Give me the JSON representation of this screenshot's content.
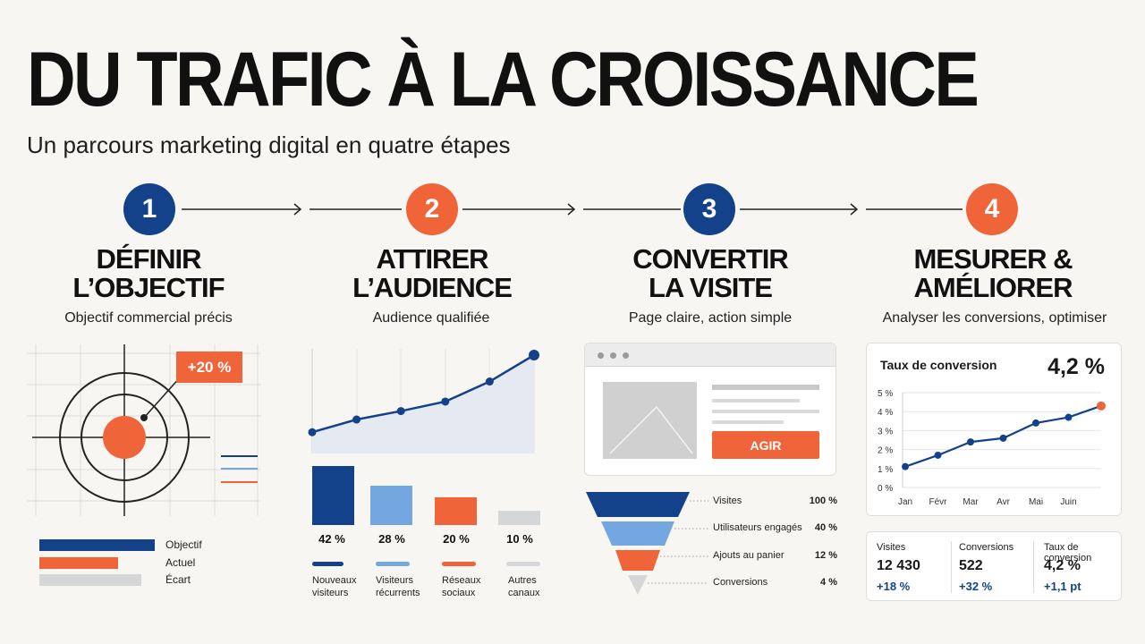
{
  "header": {
    "title": "DU TRAFIC À LA CROISSANCE",
    "subtitle": "Un parcours marketing digital en quatre étapes"
  },
  "steps": [
    {
      "number": "1",
      "title_line1": "DÉFINIR",
      "title_line2": "L’OBJECTIF",
      "subtitle": "Objectif commercial précis",
      "color": "#14428a"
    },
    {
      "number": "2",
      "title_line1": "ATTIRER",
      "title_line2": "L’AUDIENCE",
      "subtitle": "Audience qualifiée",
      "color": "#f0643a"
    },
    {
      "number": "3",
      "title_line1": "CONVERTIR",
      "title_line2": "LA VISITE",
      "subtitle": "Page claire, action simple",
      "color": "#14428a"
    },
    {
      "number": "4",
      "title_line1": "MESURER &",
      "title_line2": "AMÉLIORER",
      "subtitle": "Analyser les conversions, optimiser",
      "color": "#f0643a"
    }
  ],
  "objective": {
    "badge": "+20 %",
    "legend": [
      "Objectif",
      "Actuel",
      "Écart"
    ],
    "bar_fractions": [
      1.0,
      0.68,
      0.88
    ]
  },
  "audience": {
    "trend_values": [
      1,
      2.2,
      3.0,
      3.9,
      5.8,
      8.3
    ],
    "bars": [
      {
        "pct": "42 %",
        "value": 42,
        "label_line1": "Nouveaux",
        "label_line2": "visiteurs",
        "color": "#14428a"
      },
      {
        "pct": "28 %",
        "value": 28,
        "label_line1": "Visiteurs",
        "label_line2": "récurrents",
        "color": "#74a6df"
      },
      {
        "pct": "20 %",
        "value": 20,
        "label_line1": "Réseaux",
        "label_line2": "sociaux",
        "color": "#f0643a"
      },
      {
        "pct": "10 %",
        "value": 10,
        "label_line1": "Autres",
        "label_line2": "canaux",
        "color": "#d4d6d8"
      }
    ]
  },
  "conversion": {
    "cta_label": "AGIR",
    "funnel": [
      {
        "label": "Visites",
        "pct": "100 %",
        "color": "#14428a"
      },
      {
        "label": "Utilisateurs engagés",
        "pct": "40 %",
        "color": "#74a6df"
      },
      {
        "label": "Ajouts au panier",
        "pct": "12 %",
        "color": "#f0643a"
      },
      {
        "label": "Conversions",
        "pct": "4 %",
        "color": "#d4d6d8"
      }
    ]
  },
  "chart_data": {
    "type": "line",
    "title": "Taux de conversion",
    "headline_value": "4,2 %",
    "x": [
      "Jan",
      "Févr",
      "Mar",
      "Avr",
      "Mai",
      "Juin",
      ""
    ],
    "y_ticks": [
      "0 %",
      "1 %",
      "2 %",
      "3 %",
      "4 %",
      "5 %"
    ],
    "ylim": [
      0,
      5
    ],
    "values": [
      1.1,
      1.7,
      2.4,
      2.6,
      3.4,
      3.7,
      4.3
    ]
  },
  "kpis": [
    {
      "label": "Visites",
      "value": "12 430",
      "delta": "+18 %"
    },
    {
      "label": "Conversions",
      "value": "522",
      "delta": "+32 %"
    },
    {
      "label": "Taux de conversion",
      "value": "4,2 %",
      "delta": "+1,1 pt"
    }
  ]
}
